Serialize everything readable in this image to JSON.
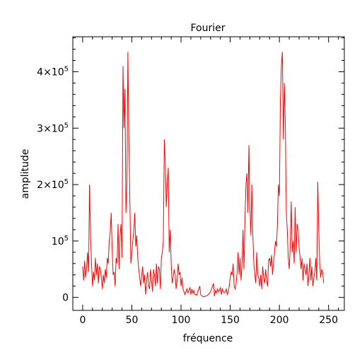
{
  "chart_data": {
    "type": "line",
    "title": "Fourier",
    "xlabel": "fréquence",
    "ylabel": "amplitude",
    "xlim": [
      -10,
      266
    ],
    "ylim": [
      -23000,
      462000
    ],
    "x_ticks": [
      {
        "value": 0,
        "label": "0"
      },
      {
        "value": 50,
        "label": "50"
      },
      {
        "value": 100,
        "label": "100"
      },
      {
        "value": 150,
        "label": "150"
      },
      {
        "value": 200,
        "label": "200"
      },
      {
        "value": 250,
        "label": "250"
      }
    ],
    "y_ticks": [
      {
        "value": 0,
        "mantissa": "0",
        "exponent": ""
      },
      {
        "value": 100000,
        "mantissa": "10",
        "exponent": "5"
      },
      {
        "value": 200000,
        "mantissa": "2×10",
        "exponent": "5"
      },
      {
        "value": 300000,
        "mantissa": "3×10",
        "exponent": "5"
      },
      {
        "value": 400000,
        "mantissa": "4×10",
        "exponent": "5"
      }
    ],
    "series": [
      {
        "name": "amplitude",
        "color": "#ff0000",
        "x_start": 0,
        "values": [
          55000,
          30000,
          65000,
          35000,
          52000,
          80000,
          45000,
          200000,
          110000,
          60000,
          20000,
          45000,
          30000,
          70000,
          40000,
          60000,
          25000,
          55000,
          50000,
          35000,
          15000,
          40000,
          25000,
          50000,
          35000,
          70000,
          60000,
          100000,
          115000,
          150000,
          85000,
          40000,
          45000,
          20000,
          70000,
          60000,
          130000,
          50000,
          110000,
          130000,
          70000,
          410000,
          300000,
          370000,
          150000,
          200000,
          435000,
          280000,
          170000,
          60000,
          80000,
          100000,
          120000,
          150000,
          90000,
          110000,
          70000,
          50000,
          35000,
          20000,
          40000,
          55000,
          25000,
          40000,
          5000,
          30000,
          45000,
          20000,
          15000,
          50000,
          30000,
          10000,
          50000,
          40000,
          20000,
          60000,
          25000,
          55000,
          50000,
          15000,
          70000,
          80000,
          100000,
          280000,
          240000,
          160000,
          200000,
          230000,
          80000,
          120000,
          60000,
          25000,
          35000,
          50000,
          40000,
          15000,
          30000,
          60000,
          40000,
          45000,
          20000,
          35000,
          15000,
          10000,
          5000,
          10000,
          15000,
          8000,
          12000,
          18000,
          5000,
          15000,
          8000,
          12000,
          5000,
          5000,
          4000,
          10000,
          15000,
          20000,
          5000,
          3000,
          2000,
          1000,
          2000,
          2000,
          3000,
          4000,
          5000,
          8000,
          10000,
          15000,
          20000,
          25000,
          2000,
          12000,
          8000,
          15000,
          10000,
          12000,
          18000,
          5000,
          15000,
          10000,
          8000,
          10000,
          15000,
          5000,
          10000,
          20000,
          35000,
          45000,
          40000,
          60000,
          20000,
          15000,
          25000,
          45000,
          80000,
          40000,
          70000,
          30000,
          60000,
          120000,
          50000,
          140000,
          200000,
          220000,
          150000,
          270000,
          160000,
          110000,
          200000,
          110000,
          60000,
          40000,
          25000,
          80000,
          40000,
          35000,
          20000,
          40000,
          15000,
          55000,
          35000,
          25000,
          50000,
          30000,
          20000,
          65000,
          70000,
          55000,
          75000,
          40000,
          60000,
          80000,
          100000,
          90000,
          130000,
          200000,
          180000,
          350000,
          410000,
          435000,
          280000,
          380000,
          310000,
          150000,
          120000,
          70000,
          50000,
          90000,
          170000,
          80000,
          100000,
          60000,
          160000,
          80000,
          130000,
          120000,
          90000,
          70000,
          50000,
          70000,
          30000,
          60000,
          50000,
          40000,
          60000,
          20000,
          40000,
          70000,
          30000,
          55000,
          20000,
          35000,
          45000,
          70000,
          30000,
          205000,
          120000,
          60000,
          35000,
          50000,
          45000,
          25000
        ]
      }
    ]
  }
}
